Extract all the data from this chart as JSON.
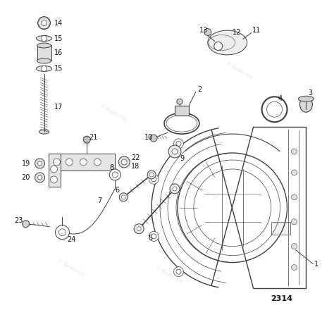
{
  "background_color": "#ffffff",
  "diagram_number": "2314",
  "lc": "#404040",
  "lw": 0.7,
  "fs": 6.5,
  "xlim": [
    0,
    474
  ],
  "ylim": [
    0,
    457
  ]
}
